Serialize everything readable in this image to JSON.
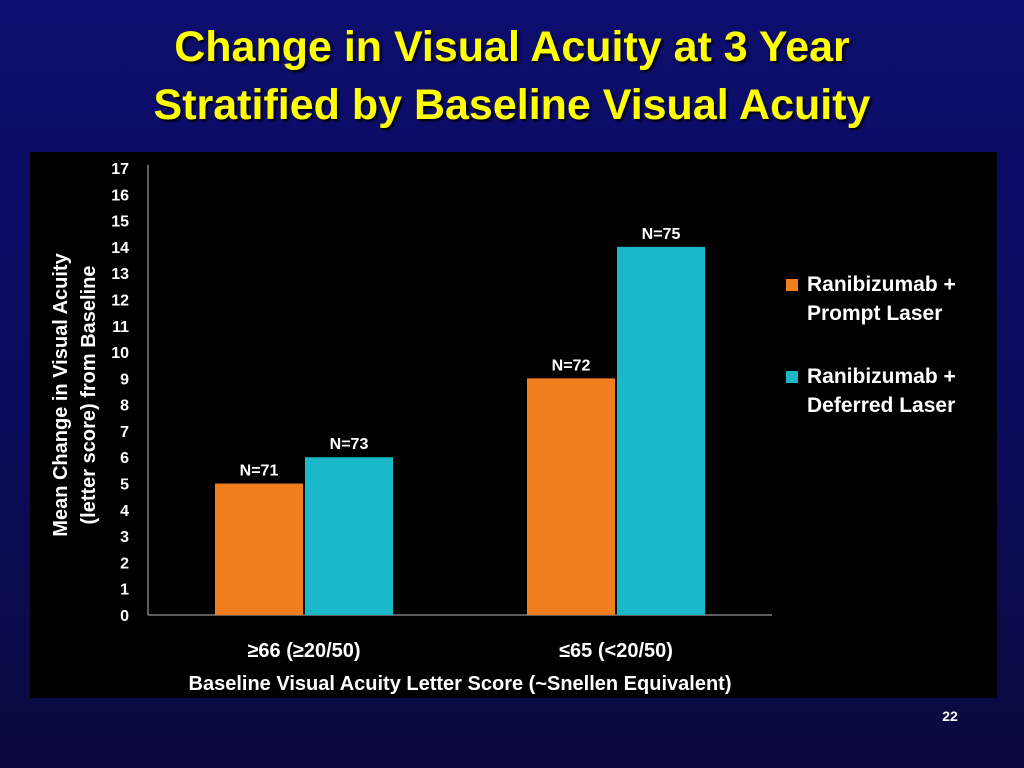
{
  "slide": {
    "title_line1": "Change in Visual Acuity at 3 Year",
    "title_line2": "Stratified by Baseline Visual Acuity",
    "slide_number": "22"
  },
  "colors": {
    "background": "#0b0b5c",
    "title": "#ffff00",
    "panel": "#000000",
    "prompt_laser": "#f07e1e",
    "deferred_laser": "#1ab8c9",
    "text": "#ffffff"
  },
  "chart_data": {
    "type": "bar",
    "title": "",
    "xlabel": "Baseline Visual Acuity Letter Score (~Snellen Equivalent)",
    "ylabel_line1": "Mean Change in Visual Acuity",
    "ylabel_line2": "(letter score) from Baseline",
    "categories": [
      "≥66 (≥20/50)",
      "≤65 (<20/50)"
    ],
    "ylim": [
      0,
      17
    ],
    "yticks": [
      0,
      1,
      2,
      3,
      4,
      5,
      6,
      7,
      8,
      9,
      10,
      11,
      12,
      13,
      14,
      15,
      16,
      17
    ],
    "grid": false,
    "legend_position": "right",
    "series": [
      {
        "name": "Ranibizumab + Prompt Laser",
        "legend_lines": [
          "Ranibizumab +",
          "Prompt Laser"
        ],
        "color": "#f07e1e",
        "values": [
          5,
          9
        ],
        "labels": [
          "N=71",
          "N=72"
        ]
      },
      {
        "name": "Ranibizumab + Deferred Laser",
        "legend_lines": [
          "Ranibizumab +",
          "Deferred Laser"
        ],
        "color": "#1ab8c9",
        "values": [
          6,
          14
        ],
        "labels": [
          "N=73",
          "N=75"
        ]
      }
    ]
  }
}
